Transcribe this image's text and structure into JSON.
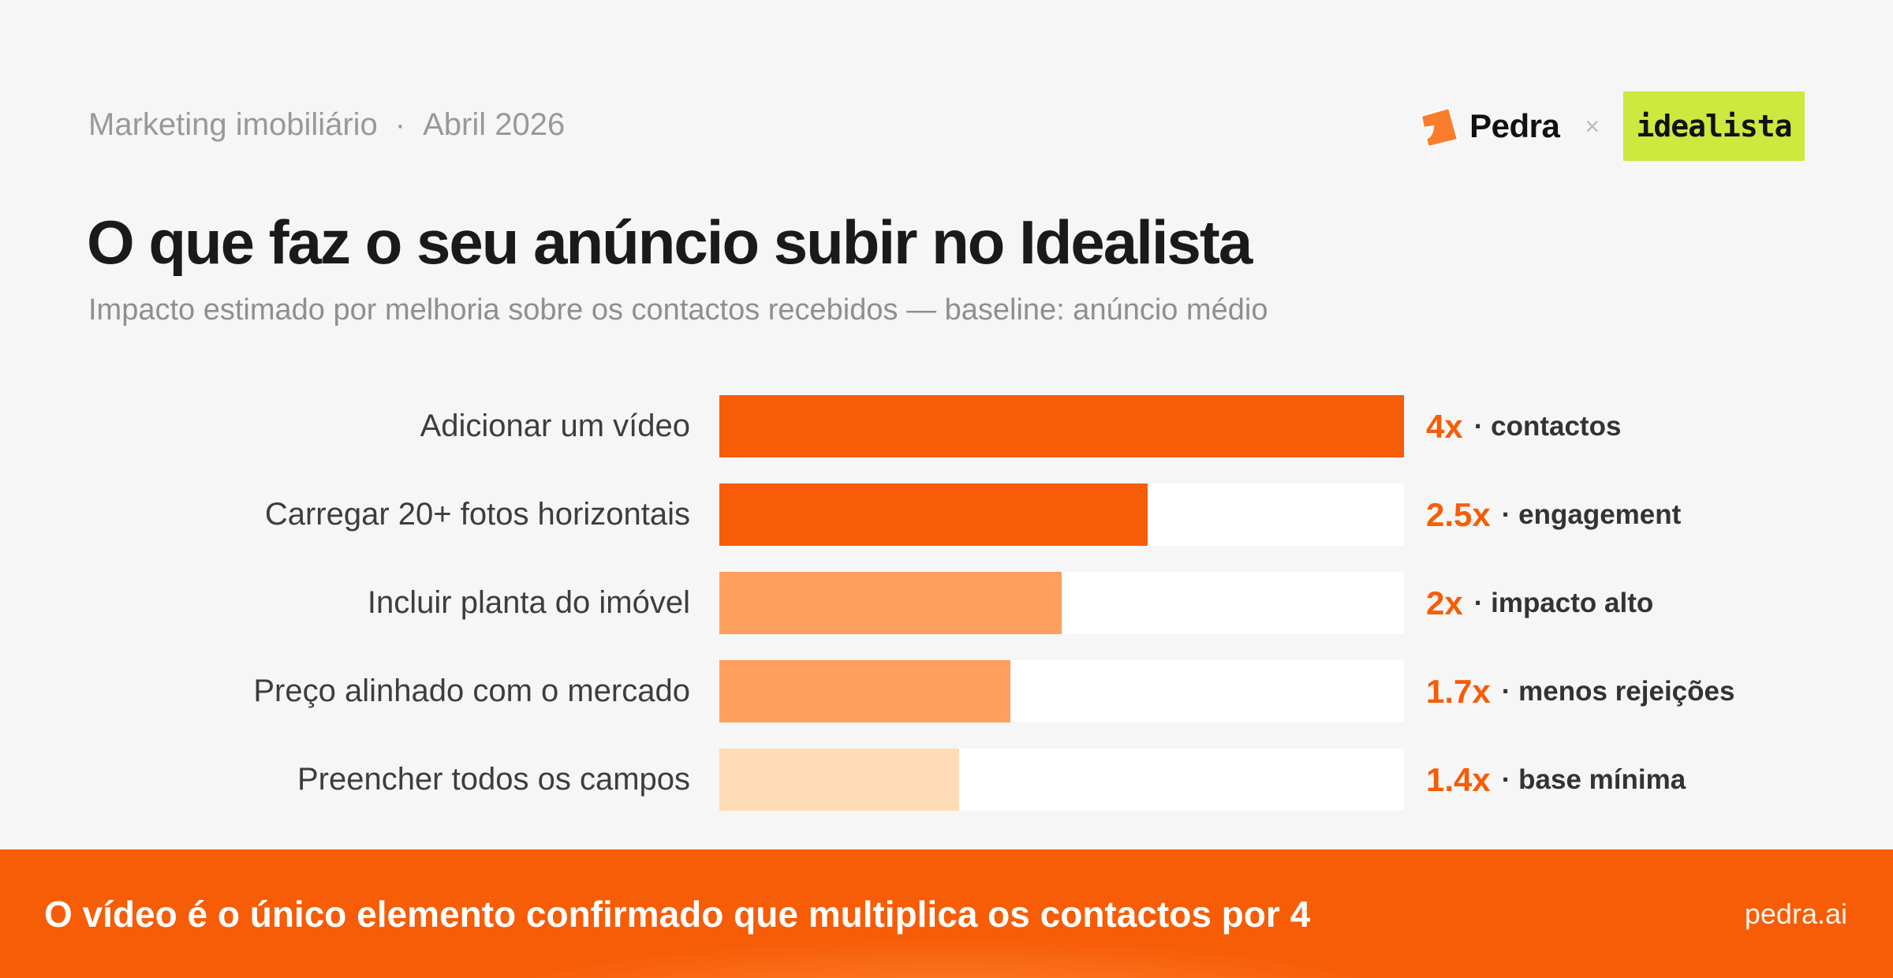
{
  "header": {
    "kicker_topic": "Marketing imobiliário",
    "kicker_separator": "·",
    "kicker_date": "Abril 2026",
    "brand_name": "Pedra",
    "collab_symbol": "×",
    "partner_name": "idealista",
    "title": "O que faz o seu anúncio subir no Idealista",
    "subtitle": "Impacto estimado por melhoria sobre os contactos recebidos — baseline: anúncio médio"
  },
  "colors": {
    "background": "#f6f6f6",
    "accent": "#f75c06",
    "bar_strong": "#f75c06",
    "bar_medium": "#ff9e5e",
    "bar_light": "#fedcb6",
    "track": "#ffffff",
    "partner_bg": "#cde83e"
  },
  "chart_data": {
    "type": "bar",
    "orientation": "horizontal",
    "title": "O que faz o seu anúncio subir no Idealista",
    "subtitle": "Impacto estimado por melhoria sobre os contactos recebidos — baseline: anúncio médio",
    "xlabel": "",
    "ylabel": "",
    "xlim": [
      0,
      4
    ],
    "grid": false,
    "legend": "none",
    "categories": [
      "Adicionar um vídeo",
      "Carregar 20+ fotos horizontais",
      "Incluir planta do imóvel",
      "Preço alinhado com o mercado",
      "Preencher todos os campos"
    ],
    "values": [
      4,
      2.5,
      2,
      1.7,
      1.4
    ],
    "value_labels": [
      "4x",
      "2.5x",
      "2x",
      "1.7x",
      "1.4x"
    ],
    "annotations": [
      "contactos",
      "engagement",
      "impacto alto",
      "menos rejeições",
      "base mínima"
    ]
  },
  "rows": [
    {
      "label": "Adicionar um vídeo",
      "value": 4,
      "mult": "4x",
      "desc": "· contactos",
      "color": "#f75c06"
    },
    {
      "label": "Carregar 20+ fotos horizontais",
      "value": 2.5,
      "mult": "2.5x",
      "desc": "· engagement",
      "color": "#f75c06"
    },
    {
      "label": "Incluir planta do imóvel",
      "value": 2,
      "mult": "2x",
      "desc": "· impacto alto",
      "color": "#ff9e5e"
    },
    {
      "label": "Preço alinhado com o mercado",
      "value": 1.7,
      "mult": "1.7x",
      "desc": "· menos rejeições",
      "color": "#ff9e5e"
    },
    {
      "label": "Preencher todos os campos",
      "value": 1.4,
      "mult": "1.4x",
      "desc": "· base mínima",
      "color": "#fedcb6"
    }
  ],
  "footer": {
    "message": "O vídeo é o único elemento confirmado que multiplica os contactos por 4",
    "url": "pedra.ai"
  }
}
